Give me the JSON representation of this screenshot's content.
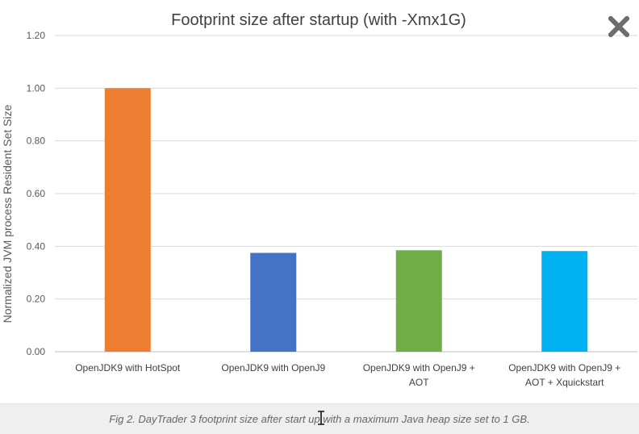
{
  "chart_data": {
    "type": "bar",
    "title": "Footprint size after startup (with -Xmx1G)",
    "xlabel": "",
    "ylabel": "Normalized JVM process Resident Set Size",
    "ylim": [
      0,
      1.2
    ],
    "yticks": [
      "0.00",
      "0.20",
      "0.40",
      "0.60",
      "0.80",
      "1.00",
      "1.20"
    ],
    "ytick_values": [
      0,
      0.2,
      0.4,
      0.6,
      0.8,
      1.0,
      1.2
    ],
    "grid": true,
    "categories": [
      [
        "OpenJDK9 with HotSpot"
      ],
      [
        "OpenJDK9 with OpenJ9"
      ],
      [
        "OpenJDK9 with OpenJ9 +",
        "AOT"
      ],
      [
        "OpenJDK9 with OpenJ9 +",
        "AOT + Xquickstart"
      ]
    ],
    "values": [
      1.0,
      0.375,
      0.385,
      0.382
    ],
    "colors": [
      "#ed7d31",
      "#4472c4",
      "#70ad47",
      "#00b0f0"
    ]
  },
  "toolbar": {
    "close_icon": "close-icon"
  },
  "caption": {
    "text": "Fig 2. DayTrader 3 footprint size after start up with a maximum Java heap size set to 1 GB."
  },
  "colors": {
    "gridline": "#d9d9d9",
    "axis_text": "#595959",
    "caption_bg": "#efefef"
  }
}
